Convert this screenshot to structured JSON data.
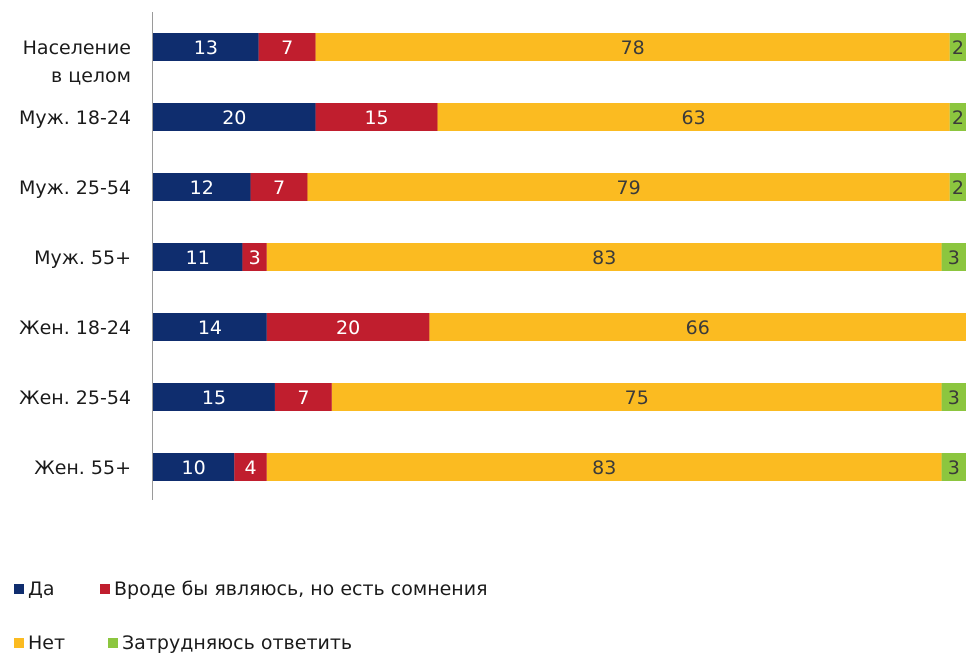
{
  "chart_data": {
    "type": "bar",
    "orientation": "horizontal",
    "stacked": true,
    "title": "",
    "xlabel": "",
    "ylabel": "",
    "xlim": [
      0,
      100
    ],
    "grid": false,
    "legend_placement": "bottom-left",
    "categories": [
      [
        "Население",
        "в целом"
      ],
      [
        "Муж. 18-24"
      ],
      [
        "Муж. 25-54"
      ],
      [
        "Муж. 55+"
      ],
      [
        "Жен. 18-24"
      ],
      [
        "Жен. 25-54"
      ],
      [
        "Жен. 55+"
      ]
    ],
    "series": [
      {
        "name": "Да",
        "color": "#0f2d6e",
        "label_color": "#ffffff",
        "values": [
          13,
          20,
          12,
          11,
          14,
          15,
          10
        ]
      },
      {
        "name": "Вроде бы являюсь, но есть сомнения",
        "color": "#c01e2e",
        "label_color": "#ffffff",
        "values": [
          7,
          15,
          7,
          3,
          20,
          7,
          4
        ]
      },
      {
        "name": "Нет",
        "color": "#fbbb21",
        "label_color": "#3a3a3a",
        "values": [
          78,
          63,
          79,
          83,
          66,
          75,
          83
        ]
      },
      {
        "name": "Затрудняюсь ответить",
        "color": "#8cc63f",
        "label_color": "#3a3a3a",
        "values": [
          2,
          2,
          2,
          3,
          null,
          3,
          3
        ]
      }
    ]
  }
}
